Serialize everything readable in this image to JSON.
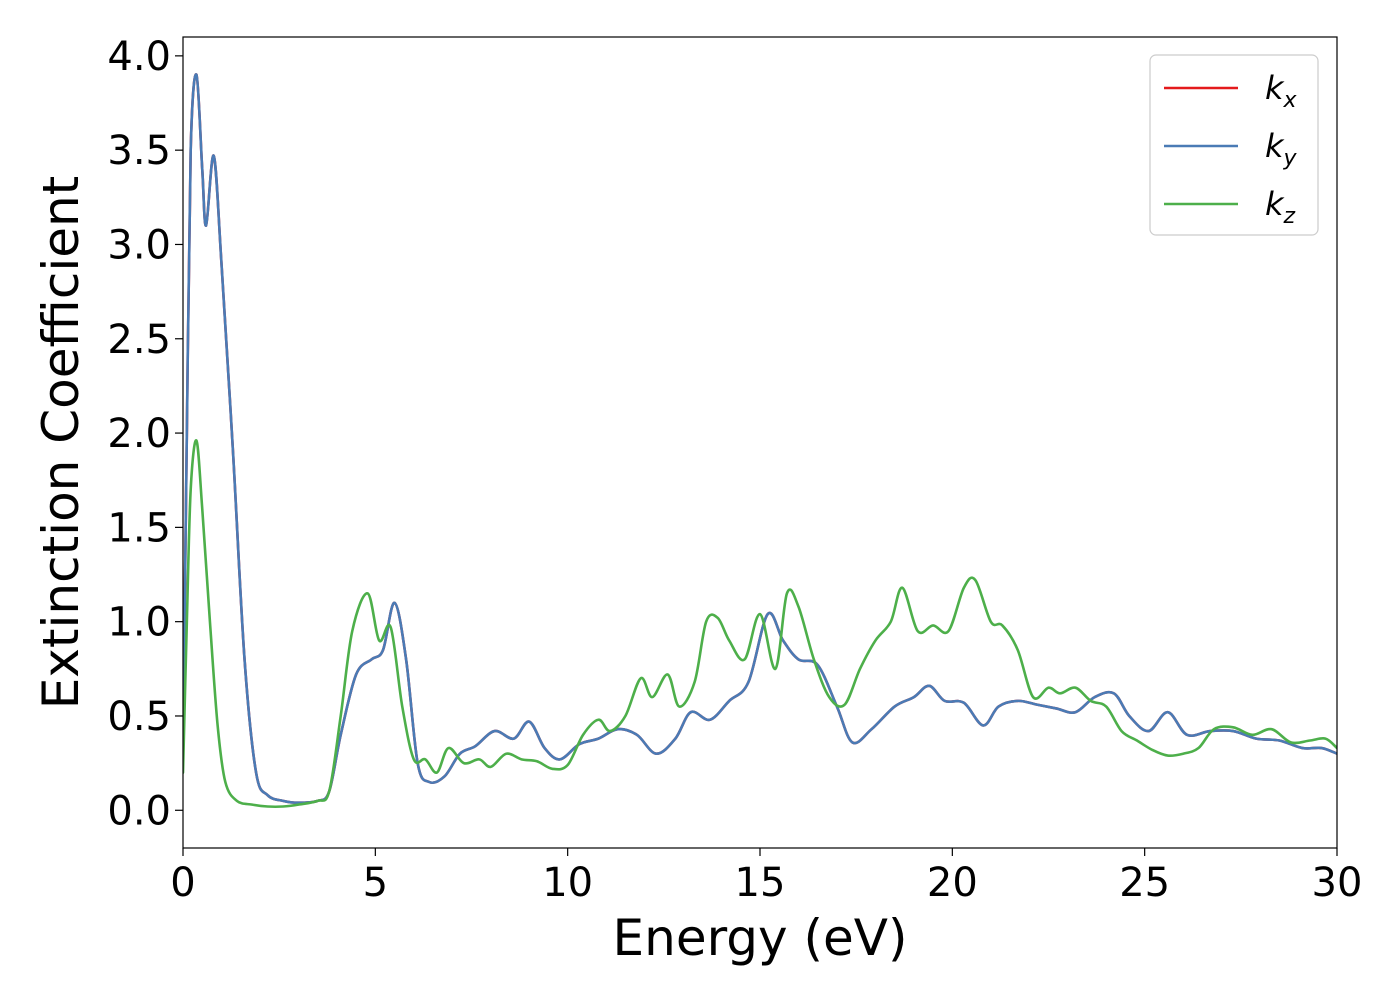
{
  "chart_data": {
    "type": "line",
    "title": "",
    "xlabel": "Energy (eV)",
    "ylabel": "Extinction Coefficient",
    "xlim": [
      0,
      30
    ],
    "ylim": [
      -0.2,
      4.1
    ],
    "xticks": [
      0,
      5,
      10,
      15,
      20,
      25,
      30
    ],
    "xtick_labels": [
      "0",
      "5",
      "10",
      "15",
      "20",
      "25",
      "30"
    ],
    "yticks": [
      0.0,
      0.5,
      1.0,
      1.5,
      2.0,
      2.5,
      3.0,
      3.5,
      4.0
    ],
    "ytick_labels": [
      "0.0",
      "0.5",
      "1.0",
      "1.5",
      "2.0",
      "2.5",
      "3.0",
      "3.5",
      "4.0"
    ],
    "grid": false,
    "legend_position": "top-right",
    "series": [
      {
        "name": "k",
        "subscript": "x",
        "color": "#e41a1c",
        "x": [
          0,
          0.1,
          0.2,
          0.35,
          0.5,
          0.6,
          0.8,
          1.0,
          1.3,
          1.6,
          1.9,
          2.2,
          2.6,
          3.0,
          3.5,
          3.8,
          4.1,
          4.5,
          4.9,
          5.2,
          5.5,
          5.8,
          6.1,
          6.4,
          6.8,
          7.2,
          7.6,
          8.1,
          8.6,
          9.0,
          9.4,
          9.8,
          10.3,
          10.8,
          11.3,
          11.8,
          12.3,
          12.8,
          13.2,
          13.7,
          14.2,
          14.7,
          15.2,
          15.6,
          16.0,
          16.5,
          17.0,
          17.4,
          17.9,
          18.5,
          19.0,
          19.4,
          19.8,
          20.3,
          20.8,
          21.2,
          21.7,
          22.2,
          22.7,
          23.2,
          23.7,
          24.2,
          24.6,
          25.1,
          25.6,
          26.1,
          26.7,
          27.3,
          27.9,
          28.5,
          29.1,
          29.6,
          30
        ],
        "y": [
          0.3,
          2.0,
          3.5,
          3.9,
          3.4,
          3.1,
          3.47,
          2.9,
          1.9,
          0.8,
          0.2,
          0.08,
          0.05,
          0.04,
          0.05,
          0.1,
          0.4,
          0.72,
          0.8,
          0.85,
          1.1,
          0.8,
          0.25,
          0.15,
          0.18,
          0.3,
          0.34,
          0.42,
          0.38,
          0.47,
          0.33,
          0.27,
          0.35,
          0.38,
          0.43,
          0.4,
          0.3,
          0.38,
          0.52,
          0.48,
          0.58,
          0.68,
          1.04,
          0.9,
          0.8,
          0.77,
          0.55,
          0.36,
          0.43,
          0.55,
          0.6,
          0.66,
          0.58,
          0.57,
          0.45,
          0.55,
          0.58,
          0.56,
          0.54,
          0.52,
          0.6,
          0.62,
          0.5,
          0.42,
          0.52,
          0.4,
          0.42,
          0.42,
          0.38,
          0.37,
          0.33,
          0.33,
          0.3
        ]
      },
      {
        "name": "k",
        "subscript": "y",
        "color": "#4a7bb5",
        "x": [
          0,
          0.1,
          0.2,
          0.35,
          0.5,
          0.6,
          0.8,
          1.0,
          1.3,
          1.6,
          1.9,
          2.2,
          2.6,
          3.0,
          3.5,
          3.8,
          4.1,
          4.5,
          4.9,
          5.2,
          5.5,
          5.8,
          6.1,
          6.4,
          6.8,
          7.2,
          7.6,
          8.1,
          8.6,
          9.0,
          9.4,
          9.8,
          10.3,
          10.8,
          11.3,
          11.8,
          12.3,
          12.8,
          13.2,
          13.7,
          14.2,
          14.7,
          15.2,
          15.6,
          16.0,
          16.5,
          17.0,
          17.4,
          17.9,
          18.5,
          19.0,
          19.4,
          19.8,
          20.3,
          20.8,
          21.2,
          21.7,
          22.2,
          22.7,
          23.2,
          23.7,
          24.2,
          24.6,
          25.1,
          25.6,
          26.1,
          26.7,
          27.3,
          27.9,
          28.5,
          29.1,
          29.6,
          30
        ],
        "y": [
          0.3,
          2.0,
          3.5,
          3.9,
          3.4,
          3.1,
          3.47,
          2.9,
          1.9,
          0.8,
          0.2,
          0.08,
          0.05,
          0.04,
          0.05,
          0.1,
          0.4,
          0.72,
          0.8,
          0.85,
          1.1,
          0.8,
          0.25,
          0.15,
          0.18,
          0.3,
          0.34,
          0.42,
          0.38,
          0.47,
          0.33,
          0.27,
          0.35,
          0.38,
          0.43,
          0.4,
          0.3,
          0.38,
          0.52,
          0.48,
          0.58,
          0.68,
          1.04,
          0.9,
          0.8,
          0.77,
          0.55,
          0.36,
          0.43,
          0.55,
          0.6,
          0.66,
          0.58,
          0.57,
          0.45,
          0.55,
          0.58,
          0.56,
          0.54,
          0.52,
          0.6,
          0.62,
          0.5,
          0.42,
          0.52,
          0.4,
          0.42,
          0.42,
          0.38,
          0.37,
          0.33,
          0.33,
          0.3
        ]
      },
      {
        "name": "k",
        "subscript": "z",
        "color": "#4daf4a",
        "x": [
          0,
          0.1,
          0.2,
          0.35,
          0.5,
          0.7,
          0.9,
          1.1,
          1.4,
          1.8,
          2.2,
          2.6,
          3.0,
          3.5,
          3.8,
          4.1,
          4.4,
          4.8,
          5.1,
          5.4,
          5.7,
          6.0,
          6.3,
          6.6,
          6.9,
          7.3,
          7.7,
          8.0,
          8.4,
          8.8,
          9.2,
          9.6,
          10.0,
          10.4,
          10.8,
          11.1,
          11.5,
          11.9,
          12.2,
          12.6,
          12.9,
          13.3,
          13.6,
          13.9,
          14.2,
          14.6,
          15.0,
          15.4,
          15.7,
          16.0,
          16.4,
          16.8,
          17.2,
          17.6,
          18.0,
          18.4,
          18.7,
          19.1,
          19.5,
          19.9,
          20.3,
          20.6,
          21.0,
          21.3,
          21.7,
          22.1,
          22.5,
          22.8,
          23.2,
          23.6,
          24.0,
          24.4,
          24.8,
          25.2,
          25.6,
          26.0,
          26.4,
          26.8,
          27.3,
          27.8,
          28.3,
          28.8,
          29.3,
          29.7,
          30
        ],
        "y": [
          0.2,
          1.0,
          1.7,
          1.96,
          1.6,
          1.0,
          0.45,
          0.15,
          0.05,
          0.03,
          0.02,
          0.02,
          0.03,
          0.05,
          0.1,
          0.5,
          0.95,
          1.15,
          0.9,
          0.97,
          0.55,
          0.27,
          0.27,
          0.2,
          0.33,
          0.25,
          0.27,
          0.23,
          0.3,
          0.27,
          0.26,
          0.22,
          0.24,
          0.4,
          0.48,
          0.42,
          0.5,
          0.7,
          0.6,
          0.72,
          0.55,
          0.68,
          1.0,
          1.02,
          0.9,
          0.8,
          1.04,
          0.75,
          1.15,
          1.08,
          0.8,
          0.6,
          0.56,
          0.75,
          0.9,
          1.0,
          1.18,
          0.95,
          0.98,
          0.95,
          1.18,
          1.22,
          1.0,
          0.98,
          0.85,
          0.6,
          0.65,
          0.62,
          0.65,
          0.58,
          0.55,
          0.42,
          0.37,
          0.32,
          0.29,
          0.3,
          0.33,
          0.43,
          0.44,
          0.4,
          0.43,
          0.36,
          0.37,
          0.38,
          0.33
        ]
      }
    ]
  }
}
